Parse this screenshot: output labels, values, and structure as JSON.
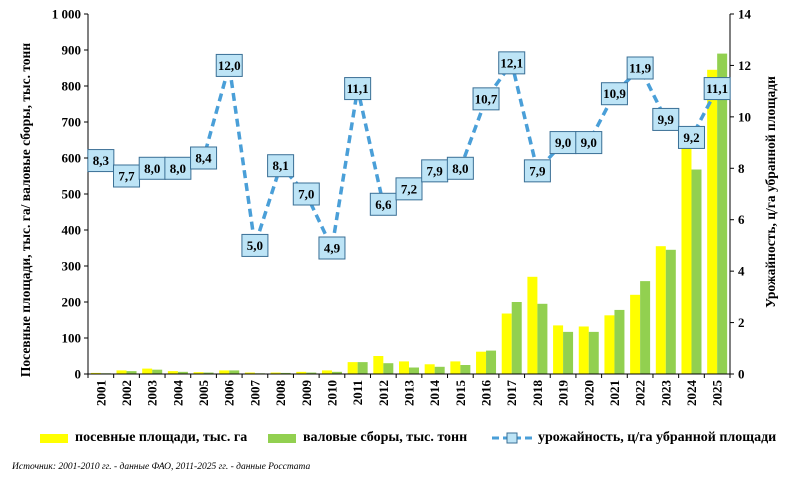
{
  "chart_data": {
    "type": "bar",
    "categories": [
      "2001",
      "2002",
      "2003",
      "2004",
      "2005",
      "2006",
      "2007",
      "2008",
      "2009",
      "2010",
      "2011",
      "2012",
      "2013",
      "2014",
      "2015",
      "2016",
      "2017",
      "2018",
      "2019",
      "2020",
      "2021",
      "2022",
      "2023",
      "2024",
      "2025"
    ],
    "series": [
      {
        "name": "посевные площади, тыс. га",
        "type": "bar",
        "axis": "left",
        "color": "#ffff00",
        "values": [
          3,
          10,
          15,
          8,
          5,
          10,
          4,
          4,
          6,
          10,
          33,
          50,
          35,
          27,
          35,
          62,
          168,
          270,
          135,
          132,
          163,
          220,
          355,
          665,
          845
        ]
      },
      {
        "name": "валовые сборы, тыс. тонн",
        "type": "bar",
        "axis": "left",
        "color": "#92d050",
        "values": [
          2,
          8,
          12,
          6,
          4,
          10,
          2,
          3,
          4,
          6,
          33,
          30,
          18,
          20,
          25,
          65,
          200,
          195,
          117,
          117,
          178,
          258,
          345,
          568,
          890
        ]
      },
      {
        "name": "урожайность, ц/га убранной площади",
        "type": "line",
        "axis": "right",
        "color": "#4a9fd8",
        "values": [
          8.3,
          7.7,
          8.0,
          8.0,
          8.4,
          12.0,
          5.0,
          8.1,
          7.0,
          4.9,
          11.1,
          6.6,
          7.2,
          7.9,
          8.0,
          10.7,
          12.1,
          7.9,
          9.0,
          9.0,
          10.9,
          11.9,
          9.9,
          9.2,
          11.1
        ],
        "labels": [
          "8,3",
          "7,7",
          "8,0",
          "8,0",
          "8,4",
          "12,0",
          "5,0",
          "8,1",
          "7,0",
          "4,9",
          "11,1",
          "6,6",
          "7,2",
          "7,9",
          "8,0",
          "10,7",
          "12,1",
          "7,9",
          "9,0",
          "9,0",
          "10,9",
          "11,9",
          "9,9",
          "9,2",
          "11,1"
        ]
      }
    ],
    "ylim": [
      0,
      1000
    ],
    "y_ticks": [
      "0",
      "100",
      "200",
      "300",
      "400",
      "500",
      "600",
      "700",
      "800",
      "900",
      "1 000"
    ],
    "y2lim": [
      0,
      14
    ],
    "y2_ticks": [
      "0",
      "2",
      "4",
      "6",
      "8",
      "10",
      "12",
      "14"
    ],
    "ylabel": "Посевные площади, тыс. га/ валовые сборы, тыс. тонн",
    "y2label": "Урожайность, ц/га убранной площади",
    "grid": false,
    "legend_position": "bottom"
  },
  "source_note": "Источник:  2001-2010 гг. - данные ФАО, 2011-2025 гг. - данные Росстата"
}
